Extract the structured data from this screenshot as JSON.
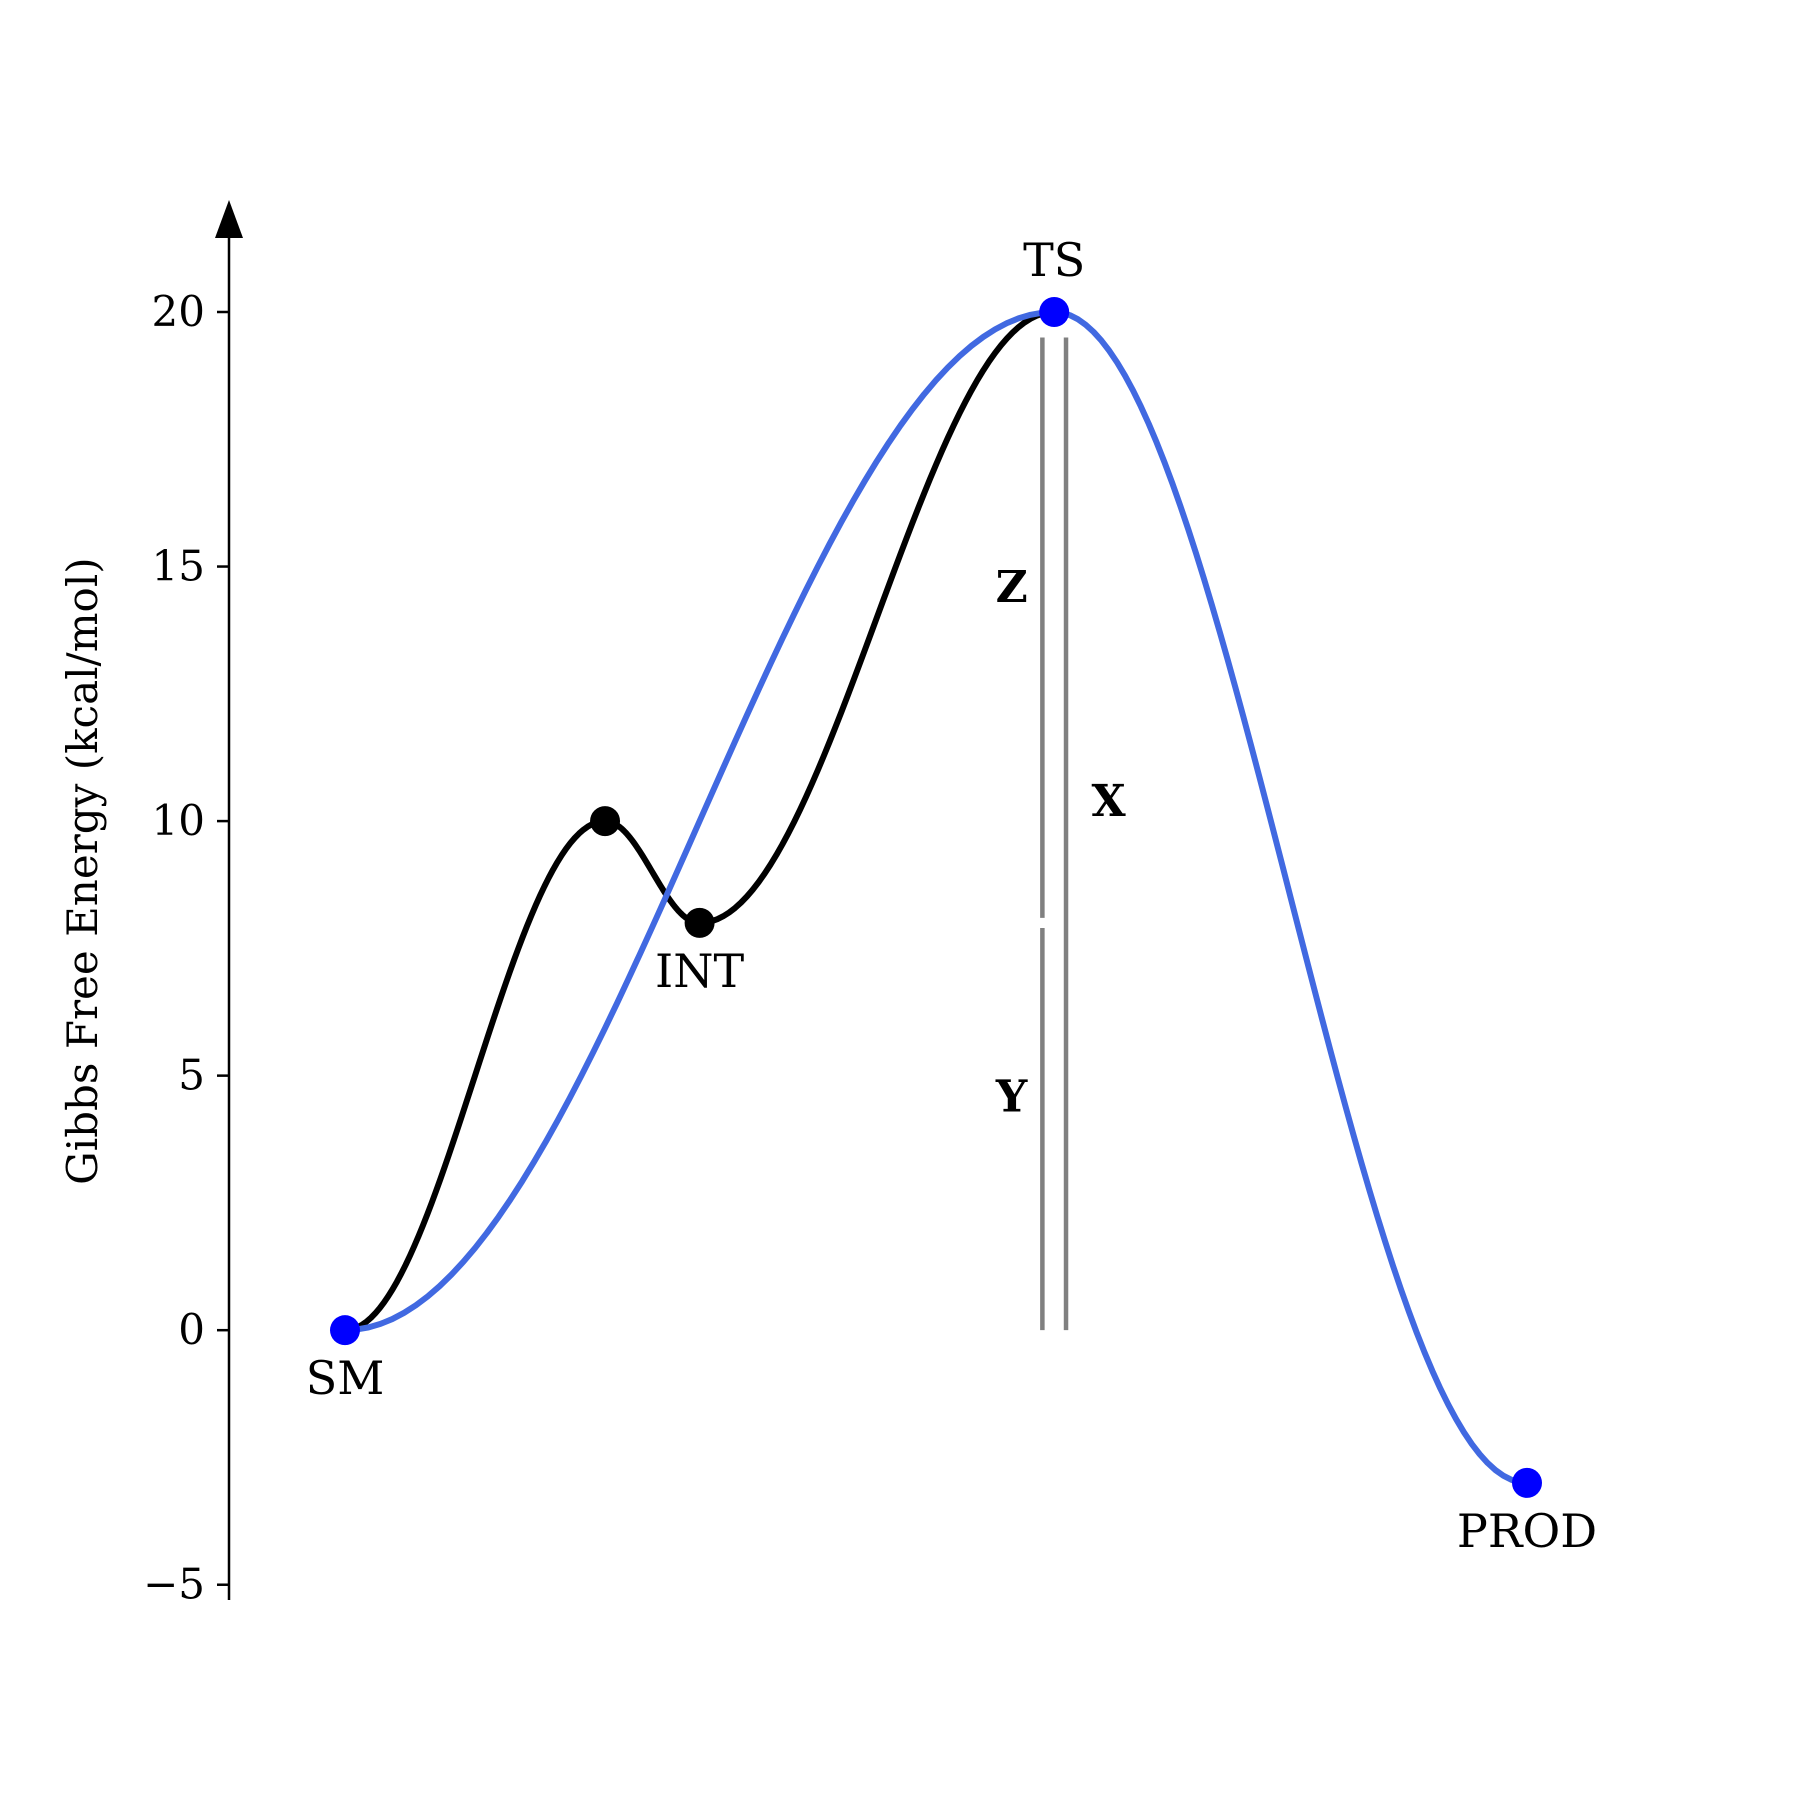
{
  "chart_data": {
    "type": "line",
    "title": "",
    "xlabel": "",
    "ylabel": "Gibbs Free Energy (kcal/mol)",
    "ylim": [
      -5.3,
      22.2
    ],
    "yticks": [
      -5,
      0,
      5,
      10,
      15,
      20
    ],
    "ytick_labels": [
      "−5",
      "0",
      "5",
      "10",
      "15",
      "20"
    ],
    "grid": false,
    "x_axis_visible": false,
    "series": [
      {
        "color": "#000000",
        "points": [
          {
            "x": 0,
            "y": 0
          },
          {
            "x": 1.1,
            "y": 10
          },
          {
            "x": 1.5,
            "y": 8
          },
          {
            "x": 3.0,
            "y": 20
          }
        ]
      },
      {
        "color": "#4169E1",
        "points": [
          {
            "x": 0,
            "y": 0
          },
          {
            "x": 3.0,
            "y": 20
          },
          {
            "x": 5.0,
            "y": -3
          }
        ]
      }
    ],
    "markers": [
      {
        "x": 0,
        "y": 0,
        "color": "#0000FF",
        "label": "SM",
        "label_pos": "below"
      },
      {
        "x": 1.1,
        "y": 10,
        "color": "#000000",
        "label": "",
        "label_pos": "below"
      },
      {
        "x": 1.5,
        "y": 8,
        "color": "#000000",
        "label": "INT",
        "label_pos": "below"
      },
      {
        "x": 3.0,
        "y": 20,
        "color": "#0000FF",
        "label": "TS",
        "label_pos": "above"
      },
      {
        "x": 5.0,
        "y": -3,
        "color": "#0000FF",
        "label": "PROD",
        "label_pos": "below"
      }
    ],
    "energy_brackets": [
      {
        "x": 2.95,
        "segments": [
          [
            0,
            7.9
          ],
          [
            8.1,
            19.5
          ]
        ],
        "color": "#808080"
      },
      {
        "x": 3.05,
        "segments": [
          [
            0,
            19.5
          ]
        ],
        "color": "#808080"
      }
    ],
    "bracket_labels": [
      {
        "text": "Z",
        "x": 2.82,
        "y": 14.3
      },
      {
        "text": "Y",
        "x": 2.82,
        "y": 4.3
      },
      {
        "text": "X",
        "x": 3.23,
        "y": 10.1
      }
    ]
  }
}
